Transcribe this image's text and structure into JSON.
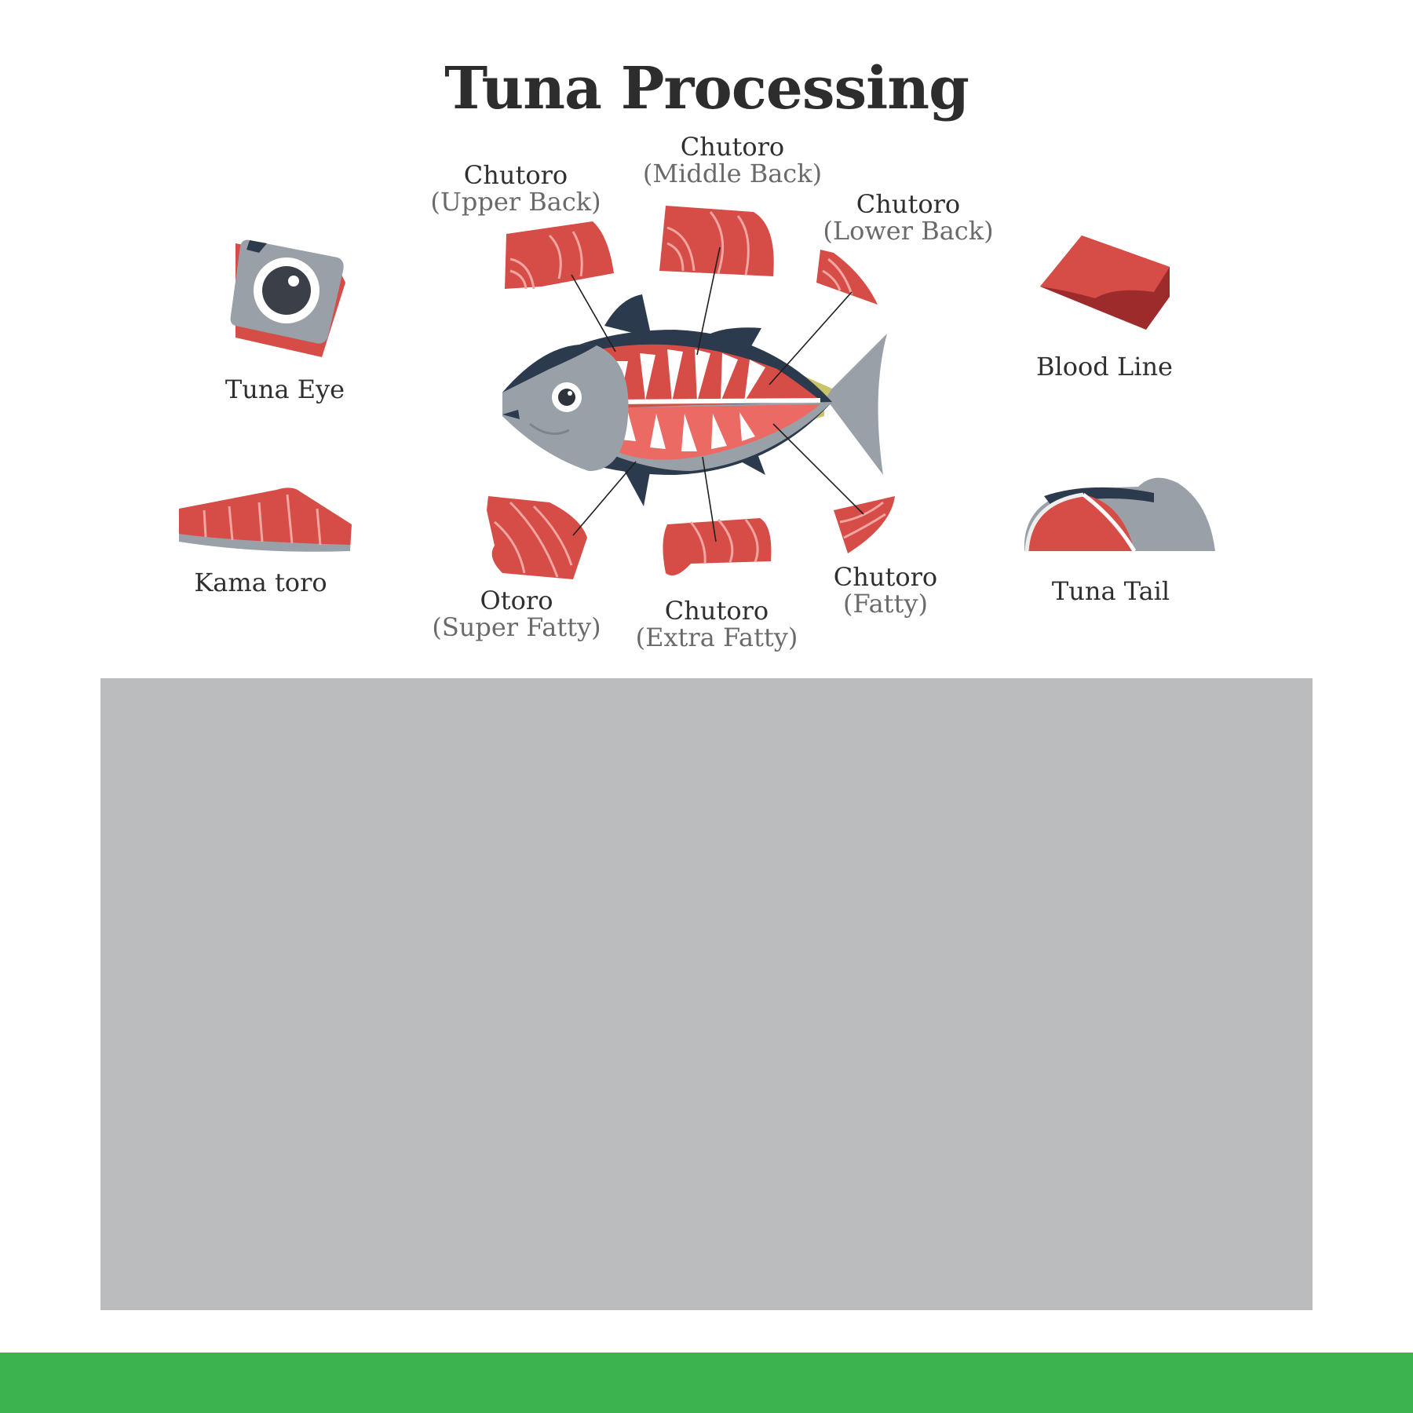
{
  "title": "Tuna Processing",
  "cuts": {
    "upper_back": {
      "name": "Chutoro",
      "detail": "(Upper Back)"
    },
    "middle_back": {
      "name": "Chutoro",
      "detail": "(Middle Back)"
    },
    "lower_back": {
      "name": "Chutoro",
      "detail": "(Lower Back)"
    },
    "super_fatty": {
      "name": "Otoro",
      "detail": "(Super Fatty)"
    },
    "extra_fatty": {
      "name": "Chutoro",
      "detail": "(Extra Fatty)"
    },
    "fatty": {
      "name": "Chutoro",
      "detail": "(Fatty)"
    }
  },
  "parts": {
    "eye": "Tuna Eye",
    "kama": "Kama toro",
    "blood_line": "Blood Line",
    "tail": "Tuna Tail"
  },
  "colors": {
    "meat": "#d64d47",
    "meat_dark": "#9e2b2b",
    "meat_light": "#ec6a64",
    "fish_dark": "#2c3a4d",
    "fish_grey": "#9aa0a8",
    "panel": "#bbbcbe",
    "footer": "#3cb34e"
  }
}
